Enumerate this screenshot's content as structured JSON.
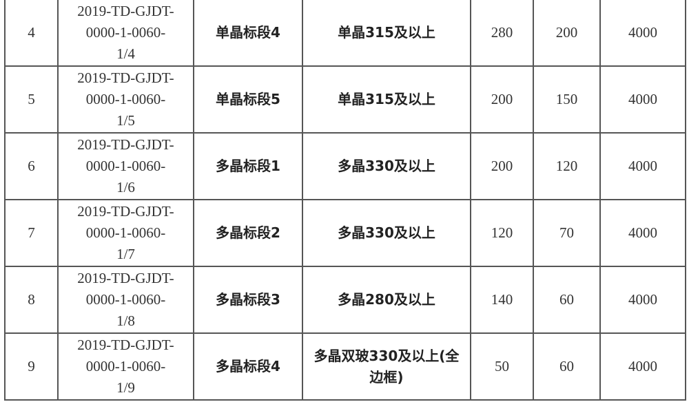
{
  "rows": [
    {
      "no": "4",
      "code": [
        "2019-TD-GJDT-",
        "0000-1-0060-",
        "1/4"
      ],
      "section": "单晶标段4",
      "spec": "单晶315及以上",
      "c5": "280",
      "c6": "200",
      "c7": "4000"
    },
    {
      "no": "5",
      "code": [
        "2019-TD-GJDT-",
        "0000-1-0060-",
        "1/5"
      ],
      "section": "单晶标段5",
      "spec": "单晶315及以上",
      "c5": "200",
      "c6": "150",
      "c7": "4000"
    },
    {
      "no": "6",
      "code": [
        "2019-TD-GJDT-",
        "0000-1-0060-",
        "1/6"
      ],
      "section": "多晶标段1",
      "spec": "多晶330及以上",
      "c5": "200",
      "c6": "120",
      "c7": "4000"
    },
    {
      "no": "7",
      "code": [
        "2019-TD-GJDT-",
        "0000-1-0060-",
        "1/7"
      ],
      "section": "多晶标段2",
      "spec": "多晶330及以上",
      "c5": "120",
      "c6": "70",
      "c7": "4000"
    },
    {
      "no": "8",
      "code": [
        "2019-TD-GJDT-",
        "0000-1-0060-",
        "1/8"
      ],
      "section": "多晶标段3",
      "spec": "多晶280及以上",
      "c5": "140",
      "c6": "60",
      "c7": "4000"
    },
    {
      "no": "9",
      "code": [
        "2019-TD-GJDT-",
        "0000-1-0060-",
        "1/9"
      ],
      "section": "多晶标段4",
      "spec": "多晶双玻330及以上(全边框)",
      "c5": "50",
      "c6": "60",
      "c7": "4000"
    }
  ]
}
